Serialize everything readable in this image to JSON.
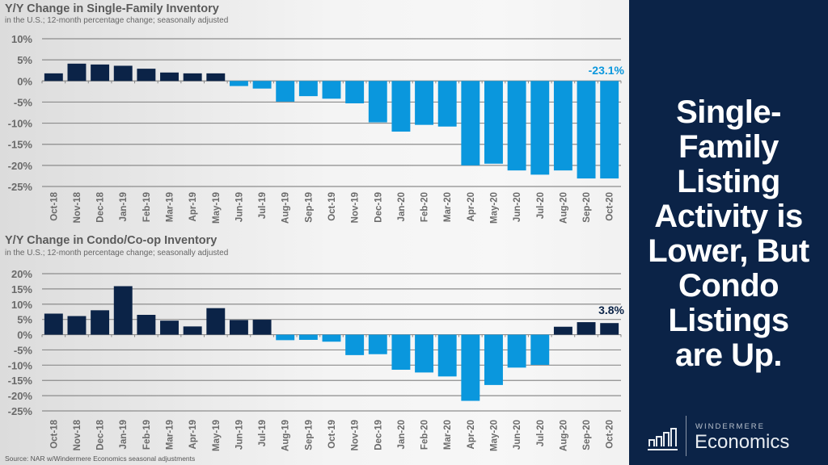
{
  "chart_data": [
    {
      "type": "bar",
      "title": "Y/Y Change in Single-Family Inventory",
      "subtitle": "in the U.S.; 12-month percentage change; seasonally adjusted",
      "categories": [
        "Oct-18",
        "Nov-18",
        "Dec-18",
        "Jan-19",
        "Feb-19",
        "Mar-19",
        "Apr-19",
        "May-19",
        "Jun-19",
        "Jul-19",
        "Aug-19",
        "Sep-19",
        "Oct-19",
        "Nov-19",
        "Dec-19",
        "Jan-20",
        "Feb-20",
        "Mar-20",
        "Apr-20",
        "May-20",
        "Jun-20",
        "Jul-20",
        "Aug-20",
        "Sep-20",
        "Oct-20"
      ],
      "values": [
        1.8,
        4.1,
        3.9,
        3.6,
        2.9,
        2.0,
        1.8,
        1.8,
        -1.2,
        -1.8,
        -4.9,
        -3.6,
        -4.2,
        -5.3,
        -9.8,
        -12.0,
        -10.4,
        -10.8,
        -20.0,
        -19.6,
        -21.2,
        -22.2,
        -21.2,
        -23.1,
        -23.1
      ],
      "yticks": [
        "10%",
        "5%",
        "0%",
        "-5%",
        "-10%",
        "-15%",
        "-20%",
        "-25%"
      ],
      "ylim": [
        -25,
        10
      ],
      "grid": true,
      "annotation": "-23.1%",
      "xlabel": "",
      "ylabel": ""
    },
    {
      "type": "bar",
      "title": "Y/Y Change in Condo/Co-op Inventory",
      "subtitle": "in the U.S.; 12-month percentage change; seasonally adjusted",
      "categories": [
        "Oct-18",
        "Nov-18",
        "Dec-18",
        "Jan-19",
        "Feb-19",
        "Mar-19",
        "Apr-19",
        "May-19",
        "Jun-19",
        "Jul-19",
        "Aug-19",
        "Sep-19",
        "Oct-19",
        "Nov-19",
        "Dec-19",
        "Jan-20",
        "Feb-20",
        "Mar-20",
        "Apr-20",
        "May-20",
        "Jun-20",
        "Jul-20",
        "Aug-20",
        "Sep-20",
        "Oct-20"
      ],
      "values": [
        6.9,
        6.1,
        8.0,
        15.9,
        6.5,
        4.6,
        2.7,
        8.7,
        4.8,
        4.9,
        -1.8,
        -1.7,
        -2.3,
        -6.7,
        -6.4,
        -11.5,
        -12.4,
        -13.7,
        -21.7,
        -16.5,
        -10.8,
        -9.9,
        2.6,
        4.1,
        3.8
      ],
      "yticks": [
        "20%",
        "15%",
        "10%",
        "5%",
        "0%",
        "-5%",
        "-10%",
        "-15%",
        "-20%",
        "-25%"
      ],
      "ylim": [
        -25,
        20
      ],
      "grid": true,
      "annotation": "3.8%",
      "xlabel": "",
      "ylabel": ""
    }
  ],
  "colors": {
    "positive": "#0b2347",
    "negative": "#0a97dd",
    "panel": "#0b2347"
  },
  "source": "Source: NAR w/Windermere Economics seasonal adjustments",
  "headline_lines": [
    "Single-",
    "Family",
    "Listing",
    "Activity is",
    "Lower, But",
    "Condo",
    "Listings",
    "are Up."
  ],
  "logo": {
    "top": "WINDERMERE",
    "main": "Economics",
    "icon": "bar-chart-icon"
  }
}
